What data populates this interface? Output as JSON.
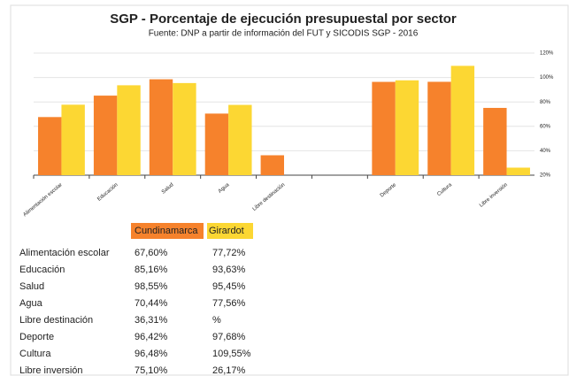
{
  "chart_data": {
    "type": "bar",
    "title": "SGP - Porcentaje de ejecución presupuestal por sector",
    "subtitle": "Fuente: DNP a partir de información del FUT y SICODIS SGP - 2016",
    "categories": [
      "Alimentación escolar",
      "Educación",
      "Salud",
      "Agua",
      "Libre destinación",
      null,
      "Deporte",
      "Cultura",
      "Libre inversión"
    ],
    "series": [
      {
        "name": "Cundinamarca",
        "color": "#f6822c",
        "values": [
          67.6,
          85.16,
          98.55,
          70.44,
          36.31,
          null,
          96.42,
          96.48,
          75.1
        ],
        "value_labels": [
          "67,60%",
          "85,16%",
          "98,55%",
          "70,44%",
          "36,31%",
          null,
          "96,42%",
          "96,48%",
          "75,10%"
        ]
      },
      {
        "name": "Girardot",
        "color": "#fcd733",
        "values": [
          77.72,
          93.63,
          95.45,
          77.56,
          null,
          null,
          97.68,
          109.55,
          26.17
        ],
        "value_labels": [
          "77,72%",
          "93,63%",
          "95,45%",
          "77,56%",
          "%",
          null,
          "97,68%",
          "109,55%",
          "26,17%"
        ]
      }
    ],
    "ylim": [
      20,
      120
    ],
    "yticks": [
      {
        "value": 20,
        "label": "20%"
      },
      {
        "value": 40,
        "label": "40%"
      },
      {
        "value": 60,
        "label": "60%"
      },
      {
        "value": 80,
        "label": "80%"
      },
      {
        "value": 100,
        "label": "100%"
      },
      {
        "value": 120,
        "label": "120%"
      }
    ],
    "grid": true,
    "y_axis_side": "right"
  }
}
